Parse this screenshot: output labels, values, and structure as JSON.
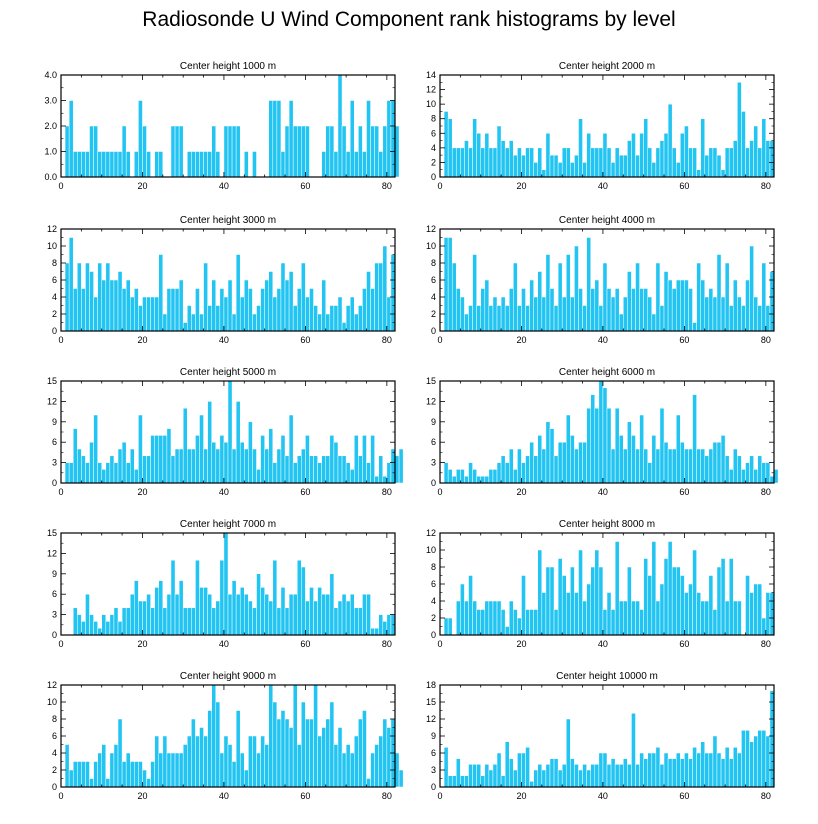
{
  "title": "Radiosonde U Wind Component rank histograms by level",
  "colors": {
    "bar": "#22c4f2",
    "bar_edge": "#ffffff",
    "axis": "#000000"
  },
  "chart_data": [
    {
      "type": "bar",
      "title": "Center height 1000 m",
      "xlim": [
        0,
        82
      ],
      "ylim": [
        0,
        4
      ],
      "xticks": [
        0,
        20,
        40,
        60,
        80
      ],
      "yticks": [
        0,
        1,
        2,
        3,
        4
      ],
      "ytick_labels": [
        "0.0",
        "1.0",
        "2.0",
        "3.0",
        "4.0"
      ],
      "values": [
        0,
        2,
        3,
        1,
        1,
        1,
        1,
        2,
        2,
        1,
        1,
        1,
        1,
        1,
        1,
        2,
        1,
        0,
        1,
        3,
        2,
        1,
        0,
        1,
        1,
        0,
        0,
        2,
        2,
        2,
        0,
        1,
        1,
        1,
        1,
        1,
        1,
        2,
        1,
        0,
        2,
        2,
        2,
        2,
        0,
        1,
        0,
        1,
        0,
        0,
        0,
        3,
        3,
        3,
        1,
        2,
        3,
        2,
        2,
        2,
        2,
        0,
        0,
        0,
        1,
        2,
        2,
        1,
        4,
        2,
        1,
        3,
        1,
        2,
        1,
        3,
        2,
        2,
        1,
        2,
        3,
        3,
        2
      ]
    },
    {
      "type": "bar",
      "title": "Center height 2000 m",
      "xlim": [
        0,
        82
      ],
      "ylim": [
        0,
        14
      ],
      "xticks": [
        0,
        20,
        40,
        60,
        80
      ],
      "yticks": [
        0,
        2,
        4,
        6,
        8,
        10,
        12,
        14
      ],
      "ytick_labels": [
        "0",
        "2",
        "4",
        "6",
        "8",
        "10",
        "12",
        "14"
      ],
      "values": [
        0,
        9,
        8,
        4,
        4,
        4,
        5,
        4,
        8,
        6,
        4,
        6,
        4,
        4,
        7,
        5,
        4,
        5,
        3,
        4,
        3,
        4,
        4,
        2,
        4,
        1,
        6,
        3,
        3,
        2,
        4,
        4,
        2,
        3,
        8,
        2,
        6,
        4,
        4,
        4,
        6,
        4,
        2,
        4,
        3,
        3,
        5,
        6,
        3,
        6,
        8,
        4,
        2,
        4,
        5,
        6,
        10,
        4,
        2,
        6,
        7,
        4,
        4,
        1,
        8,
        3,
        4,
        4,
        3,
        1,
        4,
        4,
        5,
        13,
        9,
        4,
        5,
        7,
        4,
        8,
        5,
        5
      ]
    },
    {
      "type": "bar",
      "title": "Center height 3000 m",
      "xlim": [
        0,
        82
      ],
      "ylim": [
        0,
        12
      ],
      "xticks": [
        0,
        20,
        40,
        60,
        80
      ],
      "yticks": [
        0,
        2,
        4,
        6,
        8,
        10,
        12
      ],
      "ytick_labels": [
        "0",
        "2",
        "4",
        "6",
        "8",
        "10",
        "12"
      ],
      "values": [
        0,
        8,
        11,
        5,
        8,
        5,
        8,
        7,
        4,
        8,
        6,
        8,
        6,
        6,
        7,
        5,
        6,
        4,
        5,
        3,
        4,
        4,
        4,
        4,
        9,
        2,
        5,
        5,
        5,
        6,
        1,
        3,
        2,
        5,
        2,
        8,
        3,
        6,
        3,
        5,
        4,
        6,
        2,
        9,
        4,
        6,
        5,
        2,
        3,
        5,
        6,
        7,
        4,
        5,
        8,
        6,
        7,
        3,
        5,
        8,
        4,
        5,
        3,
        2,
        6,
        2,
        3,
        3,
        4,
        1,
        3,
        4,
        2,
        3,
        5,
        7,
        5,
        8,
        8,
        10,
        4,
        9
      ]
    },
    {
      "type": "bar",
      "title": "Center height 4000 m",
      "xlim": [
        0,
        82
      ],
      "ylim": [
        0,
        12
      ],
      "xticks": [
        0,
        20,
        40,
        60,
        80
      ],
      "yticks": [
        0,
        2,
        4,
        6,
        8,
        10,
        12
      ],
      "ytick_labels": [
        "0",
        "2",
        "4",
        "6",
        "8",
        "10",
        "12"
      ],
      "values": [
        0,
        11,
        11,
        8,
        5,
        4,
        2,
        3,
        9,
        3,
        5,
        6,
        3,
        4,
        3,
        4,
        3,
        5,
        8,
        3,
        5,
        3,
        6,
        4,
        7,
        4,
        9,
        5,
        3,
        8,
        4,
        9,
        4,
        10,
        5,
        3,
        11,
        5,
        6,
        3,
        8,
        5,
        4,
        5,
        2,
        4,
        7,
        5,
        8,
        5,
        5,
        4,
        2,
        8,
        3,
        7,
        6,
        5,
        6,
        6,
        6,
        5,
        1,
        8,
        6,
        4,
        5,
        4,
        9,
        4,
        8,
        3,
        6,
        4,
        3,
        6,
        10,
        4,
        3,
        8,
        3,
        7
      ]
    },
    {
      "type": "bar",
      "title": "Center height 5000 m",
      "xlim": [
        0,
        82
      ],
      "ylim": [
        0,
        15
      ],
      "xticks": [
        0,
        20,
        40,
        60,
        80
      ],
      "yticks": [
        0,
        3,
        6,
        9,
        12,
        15
      ],
      "ytick_labels": [
        "0",
        "3",
        "6",
        "9",
        "12",
        "15"
      ],
      "values": [
        0,
        3,
        3,
        8,
        5,
        4,
        3,
        6,
        10,
        3,
        2,
        3,
        4,
        3,
        5,
        6,
        3,
        5,
        2,
        10,
        4,
        4,
        7,
        7,
        7,
        7,
        8,
        4,
        5,
        5,
        11,
        5,
        5,
        7,
        10,
        5,
        12,
        6,
        5,
        7,
        6,
        15,
        5,
        12,
        6,
        5,
        9,
        5,
        2,
        7,
        5,
        8,
        3,
        5,
        7,
        4,
        10,
        3,
        4,
        5,
        7,
        4,
        4,
        3,
        4,
        4,
        7,
        6,
        4,
        4,
        3,
        2,
        7,
        4,
        7,
        3,
        7,
        1,
        4,
        1,
        3,
        5,
        4,
        5
      ]
    },
    {
      "type": "bar",
      "title": "Center height 6000 m",
      "xlim": [
        0,
        82
      ],
      "ylim": [
        0,
        15
      ],
      "xticks": [
        0,
        20,
        40,
        60,
        80
      ],
      "yticks": [
        0,
        3,
        6,
        9,
        12,
        15
      ],
      "ytick_labels": [
        "0",
        "3",
        "6",
        "9",
        "12",
        "15"
      ],
      "values": [
        0,
        3,
        2,
        1,
        2,
        2,
        1,
        3,
        2,
        1,
        1,
        1,
        2,
        2,
        3,
        4,
        3,
        5,
        2,
        5,
        3,
        4,
        6,
        4,
        7,
        5,
        9,
        8,
        4,
        6,
        6,
        10,
        7,
        5,
        6,
        6,
        11,
        13,
        11,
        15,
        14,
        11,
        5,
        11,
        7,
        5,
        9,
        7,
        5,
        10,
        5,
        3,
        7,
        5,
        11,
        6,
        5,
        5,
        10,
        6,
        5,
        5,
        13,
        5,
        5,
        4,
        5,
        6,
        6,
        7,
        4,
        2,
        5,
        4,
        2,
        3,
        4,
        2,
        4,
        3,
        3,
        1,
        2
      ]
    },
    {
      "type": "bar",
      "title": "Center height 7000 m",
      "xlim": [
        0,
        82
      ],
      "ylim": [
        0,
        15
      ],
      "xticks": [
        0,
        20,
        40,
        60,
        80
      ],
      "yticks": [
        0,
        3,
        6,
        9,
        12,
        15
      ],
      "ytick_labels": [
        "0",
        "3",
        "6",
        "9",
        "12",
        "15"
      ],
      "values": [
        0,
        0,
        0,
        4,
        3,
        2,
        6,
        3,
        2,
        1,
        3,
        2,
        3,
        4,
        2,
        4,
        4,
        6,
        8,
        5,
        5,
        6,
        4,
        7,
        8,
        4,
        6,
        11,
        6,
        8,
        4,
        4,
        4,
        11,
        7,
        7,
        6,
        4,
        5,
        11,
        15,
        6,
        8,
        6,
        7,
        6,
        5,
        4,
        9,
        7,
        6,
        5,
        11,
        4,
        7,
        4,
        6,
        6,
        11,
        10,
        5,
        7,
        5,
        7,
        6,
        6,
        9,
        4,
        5,
        6,
        5,
        6,
        4,
        4,
        6,
        6,
        1,
        1,
        3,
        2,
        3,
        3
      ]
    },
    {
      "type": "bar",
      "title": "Center height 8000 m",
      "xlim": [
        0,
        82
      ],
      "ylim": [
        0,
        12
      ],
      "xticks": [
        0,
        20,
        40,
        60,
        80
      ],
      "yticks": [
        0,
        2,
        4,
        6,
        8,
        10,
        12
      ],
      "ytick_labels": [
        "0",
        "2",
        "4",
        "6",
        "8",
        "10",
        "12"
      ],
      "values": [
        0,
        2,
        2,
        0,
        4,
        6,
        4,
        7,
        4,
        3,
        3,
        4,
        4,
        4,
        4,
        3,
        1,
        4,
        3,
        2,
        7,
        3,
        3,
        3,
        10,
        5,
        8,
        8,
        3,
        9,
        7,
        5,
        8,
        5,
        10,
        4,
        6,
        8,
        10,
        8,
        3,
        5,
        3,
        11,
        4,
        4,
        8,
        4,
        4,
        3,
        9,
        7,
        11,
        4,
        6,
        9,
        11,
        8,
        8,
        7,
        5,
        6,
        10,
        5,
        4,
        4,
        7,
        3,
        8,
        9,
        4,
        9,
        4,
        4,
        0,
        7,
        5,
        6,
        6,
        2,
        5,
        5
      ]
    },
    {
      "type": "bar",
      "title": "Center height 9000 m",
      "xlim": [
        0,
        82
      ],
      "ylim": [
        0,
        12
      ],
      "xticks": [
        0,
        20,
        40,
        60,
        80
      ],
      "yticks": [
        0,
        2,
        4,
        6,
        8,
        10,
        12
      ],
      "ytick_labels": [
        "0",
        "2",
        "4",
        "6",
        "8",
        "10",
        "12"
      ],
      "values": [
        0,
        5,
        2,
        3,
        3,
        3,
        3,
        1,
        3,
        4,
        5,
        1,
        4,
        5,
        8,
        3,
        4,
        3,
        3,
        3,
        2,
        1,
        3,
        6,
        4,
        6,
        4,
        4,
        4,
        4,
        5,
        6,
        8,
        6,
        7,
        6,
        9,
        12,
        10,
        4,
        6,
        5,
        3,
        9,
        4,
        2,
        6,
        6,
        4,
        6,
        5,
        12,
        10,
        8,
        9,
        8,
        7,
        12,
        5,
        10,
        8,
        8,
        12,
        6,
        7,
        8,
        10,
        5,
        7,
        4,
        5,
        4,
        6,
        8,
        9,
        1,
        4,
        5,
        6,
        8,
        7,
        8,
        4,
        2
      ]
    },
    {
      "type": "bar",
      "title": "Center height 10000 m",
      "xlim": [
        0,
        82
      ],
      "ylim": [
        0,
        18
      ],
      "xticks": [
        0,
        20,
        40,
        60,
        80
      ],
      "yticks": [
        0,
        3,
        6,
        9,
        12,
        15,
        18
      ],
      "ytick_labels": [
        "0",
        "3",
        "6",
        "9",
        "12",
        "15",
        "18"
      ],
      "values": [
        0,
        7,
        2,
        2,
        5,
        2,
        2,
        4,
        4,
        4,
        2,
        4,
        3,
        4,
        6,
        2,
        8,
        5,
        3,
        6,
        6,
        7,
        1,
        3,
        4,
        3,
        4,
        5,
        5,
        3,
        4,
        12,
        5,
        4,
        3,
        4,
        3,
        4,
        4,
        6,
        6,
        4,
        5,
        4,
        4,
        5,
        4,
        13,
        4,
        6,
        5,
        6,
        6,
        7,
        4,
        6,
        5,
        5,
        6,
        5,
        6,
        5,
        7,
        6,
        8,
        6,
        6,
        9,
        6,
        5,
        7,
        5,
        7,
        6,
        10,
        10,
        8,
        9,
        10,
        10,
        9,
        17
      ]
    }
  ]
}
